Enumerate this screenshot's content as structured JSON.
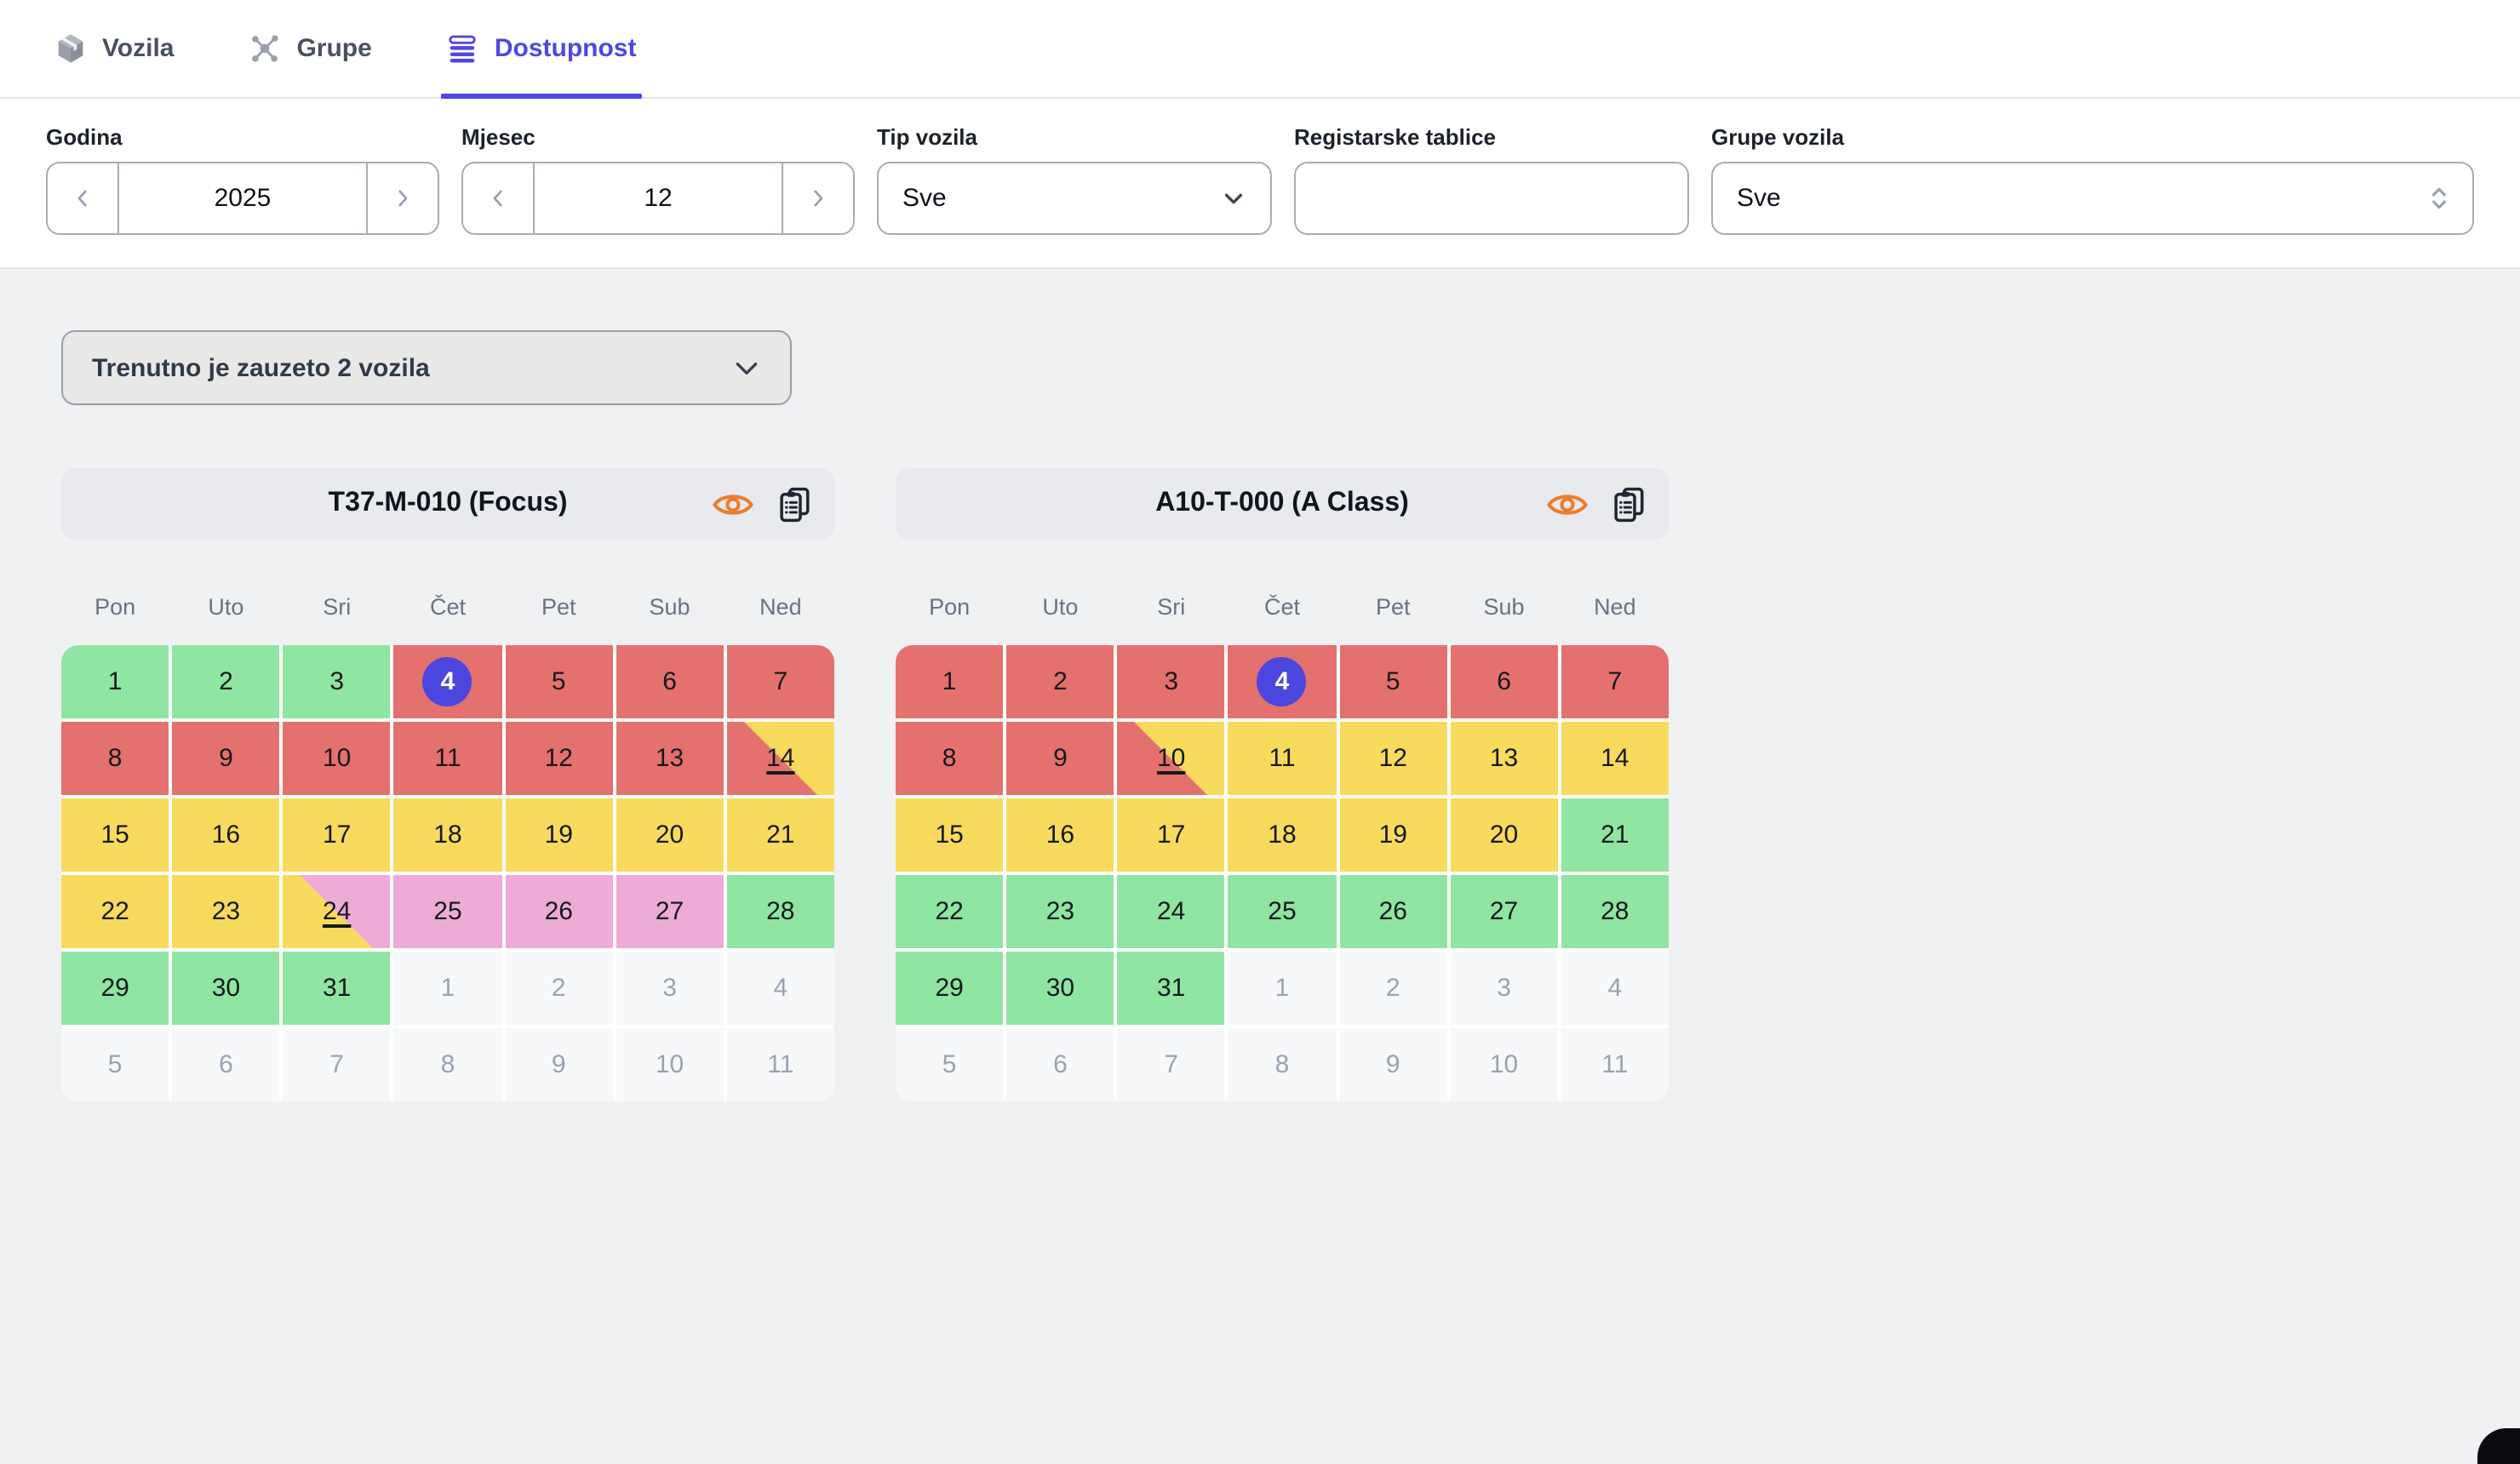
{
  "tabs": [
    {
      "label": "Vozila",
      "active": false
    },
    {
      "label": "Grupe",
      "active": false
    },
    {
      "label": "Dostupnost",
      "active": true
    }
  ],
  "filters": {
    "year": {
      "label": "Godina",
      "value": "2025"
    },
    "month": {
      "label": "Mjesec",
      "value": "12"
    },
    "vehicle_type": {
      "label": "Tip vozila",
      "value": "Sve"
    },
    "license_plate": {
      "label": "Registarske tablice",
      "value": ""
    },
    "vehicle_groups": {
      "label": "Grupe vozila",
      "value": "Sve"
    }
  },
  "occupancy_summary": {
    "label": "Trenutno je zauzeto 2 vozila"
  },
  "weekday_headers": [
    "Pon",
    "Uto",
    "Sri",
    "Čet",
    "Pet",
    "Sub",
    "Ned"
  ],
  "colors": {
    "green": "#8fe5a2",
    "red": "#e4716d",
    "yellow": "#f8db5c",
    "pink": "#efabd7",
    "muted": "#f7f8fa",
    "badge": "#4b46dd",
    "accent": "#5046e5",
    "eye": "#ee7b2c",
    "clipboard": "#20252f"
  },
  "calendars": [
    {
      "title": "T37-M-010 (Focus)",
      "weeks": [
        [
          {
            "day": 1,
            "color": "green"
          },
          {
            "day": 2,
            "color": "green"
          },
          {
            "day": 3,
            "color": "green"
          },
          {
            "day": 4,
            "color": "red",
            "selected": true
          },
          {
            "day": 5,
            "color": "red"
          },
          {
            "day": 6,
            "color": "red"
          },
          {
            "day": 7,
            "color": "red"
          }
        ],
        [
          {
            "day": 8,
            "color": "red"
          },
          {
            "day": 9,
            "color": "red"
          },
          {
            "day": 10,
            "color": "red"
          },
          {
            "day": 11,
            "color": "red"
          },
          {
            "day": 12,
            "color": "red"
          },
          {
            "day": 13,
            "color": "red"
          },
          {
            "day": 14,
            "color": "red-yellow",
            "underlined": true
          }
        ],
        [
          {
            "day": 15,
            "color": "yellow"
          },
          {
            "day": 16,
            "color": "yellow"
          },
          {
            "day": 17,
            "color": "yellow"
          },
          {
            "day": 18,
            "color": "yellow"
          },
          {
            "day": 19,
            "color": "yellow"
          },
          {
            "day": 20,
            "color": "yellow"
          },
          {
            "day": 21,
            "color": "yellow"
          }
        ],
        [
          {
            "day": 22,
            "color": "yellow"
          },
          {
            "day": 23,
            "color": "yellow"
          },
          {
            "day": 24,
            "color": "yellow-pink",
            "underlined": true
          },
          {
            "day": 25,
            "color": "pink"
          },
          {
            "day": 26,
            "color": "pink"
          },
          {
            "day": 27,
            "color": "pink"
          },
          {
            "day": 28,
            "color": "green"
          }
        ],
        [
          {
            "day": 29,
            "color": "green"
          },
          {
            "day": 30,
            "color": "green"
          },
          {
            "day": 31,
            "color": "green"
          },
          {
            "day": 1,
            "color": "muted",
            "muted": true
          },
          {
            "day": 2,
            "color": "muted",
            "muted": true
          },
          {
            "day": 3,
            "color": "muted",
            "muted": true
          },
          {
            "day": 4,
            "color": "muted",
            "muted": true
          }
        ],
        [
          {
            "day": 5,
            "color": "muted",
            "muted": true
          },
          {
            "day": 6,
            "color": "muted",
            "muted": true
          },
          {
            "day": 7,
            "color": "muted",
            "muted": true
          },
          {
            "day": 8,
            "color": "muted",
            "muted": true
          },
          {
            "day": 9,
            "color": "muted",
            "muted": true
          },
          {
            "day": 10,
            "color": "muted",
            "muted": true
          },
          {
            "day": 11,
            "color": "muted",
            "muted": true
          }
        ]
      ]
    },
    {
      "title": "A10-T-000 (A Class)",
      "weeks": [
        [
          {
            "day": 1,
            "color": "red"
          },
          {
            "day": 2,
            "color": "red"
          },
          {
            "day": 3,
            "color": "red"
          },
          {
            "day": 4,
            "color": "red",
            "selected": true
          },
          {
            "day": 5,
            "color": "red"
          },
          {
            "day": 6,
            "color": "red"
          },
          {
            "day": 7,
            "color": "red"
          }
        ],
        [
          {
            "day": 8,
            "color": "red"
          },
          {
            "day": 9,
            "color": "red"
          },
          {
            "day": 10,
            "color": "red-yellow",
            "underlined": true
          },
          {
            "day": 11,
            "color": "yellow"
          },
          {
            "day": 12,
            "color": "yellow"
          },
          {
            "day": 13,
            "color": "yellow"
          },
          {
            "day": 14,
            "color": "yellow"
          }
        ],
        [
          {
            "day": 15,
            "color": "yellow"
          },
          {
            "day": 16,
            "color": "yellow"
          },
          {
            "day": 17,
            "color": "yellow"
          },
          {
            "day": 18,
            "color": "yellow"
          },
          {
            "day": 19,
            "color": "yellow"
          },
          {
            "day": 20,
            "color": "yellow"
          },
          {
            "day": 21,
            "color": "green"
          }
        ],
        [
          {
            "day": 22,
            "color": "green"
          },
          {
            "day": 23,
            "color": "green"
          },
          {
            "day": 24,
            "color": "green"
          },
          {
            "day": 25,
            "color": "green"
          },
          {
            "day": 26,
            "color": "green"
          },
          {
            "day": 27,
            "color": "green"
          },
          {
            "day": 28,
            "color": "green"
          }
        ],
        [
          {
            "day": 29,
            "color": "green"
          },
          {
            "day": 30,
            "color": "green"
          },
          {
            "day": 31,
            "color": "green"
          },
          {
            "day": 1,
            "color": "muted",
            "muted": true
          },
          {
            "day": 2,
            "color": "muted",
            "muted": true
          },
          {
            "day": 3,
            "color": "muted",
            "muted": true
          },
          {
            "day": 4,
            "color": "muted",
            "muted": true
          }
        ],
        [
          {
            "day": 5,
            "color": "muted",
            "muted": true
          },
          {
            "day": 6,
            "color": "muted",
            "muted": true
          },
          {
            "day": 7,
            "color": "muted",
            "muted": true
          },
          {
            "day": 8,
            "color": "muted",
            "muted": true
          },
          {
            "day": 9,
            "color": "muted",
            "muted": true
          },
          {
            "day": 10,
            "color": "muted",
            "muted": true
          },
          {
            "day": 11,
            "color": "muted",
            "muted": true
          }
        ]
      ]
    }
  ]
}
